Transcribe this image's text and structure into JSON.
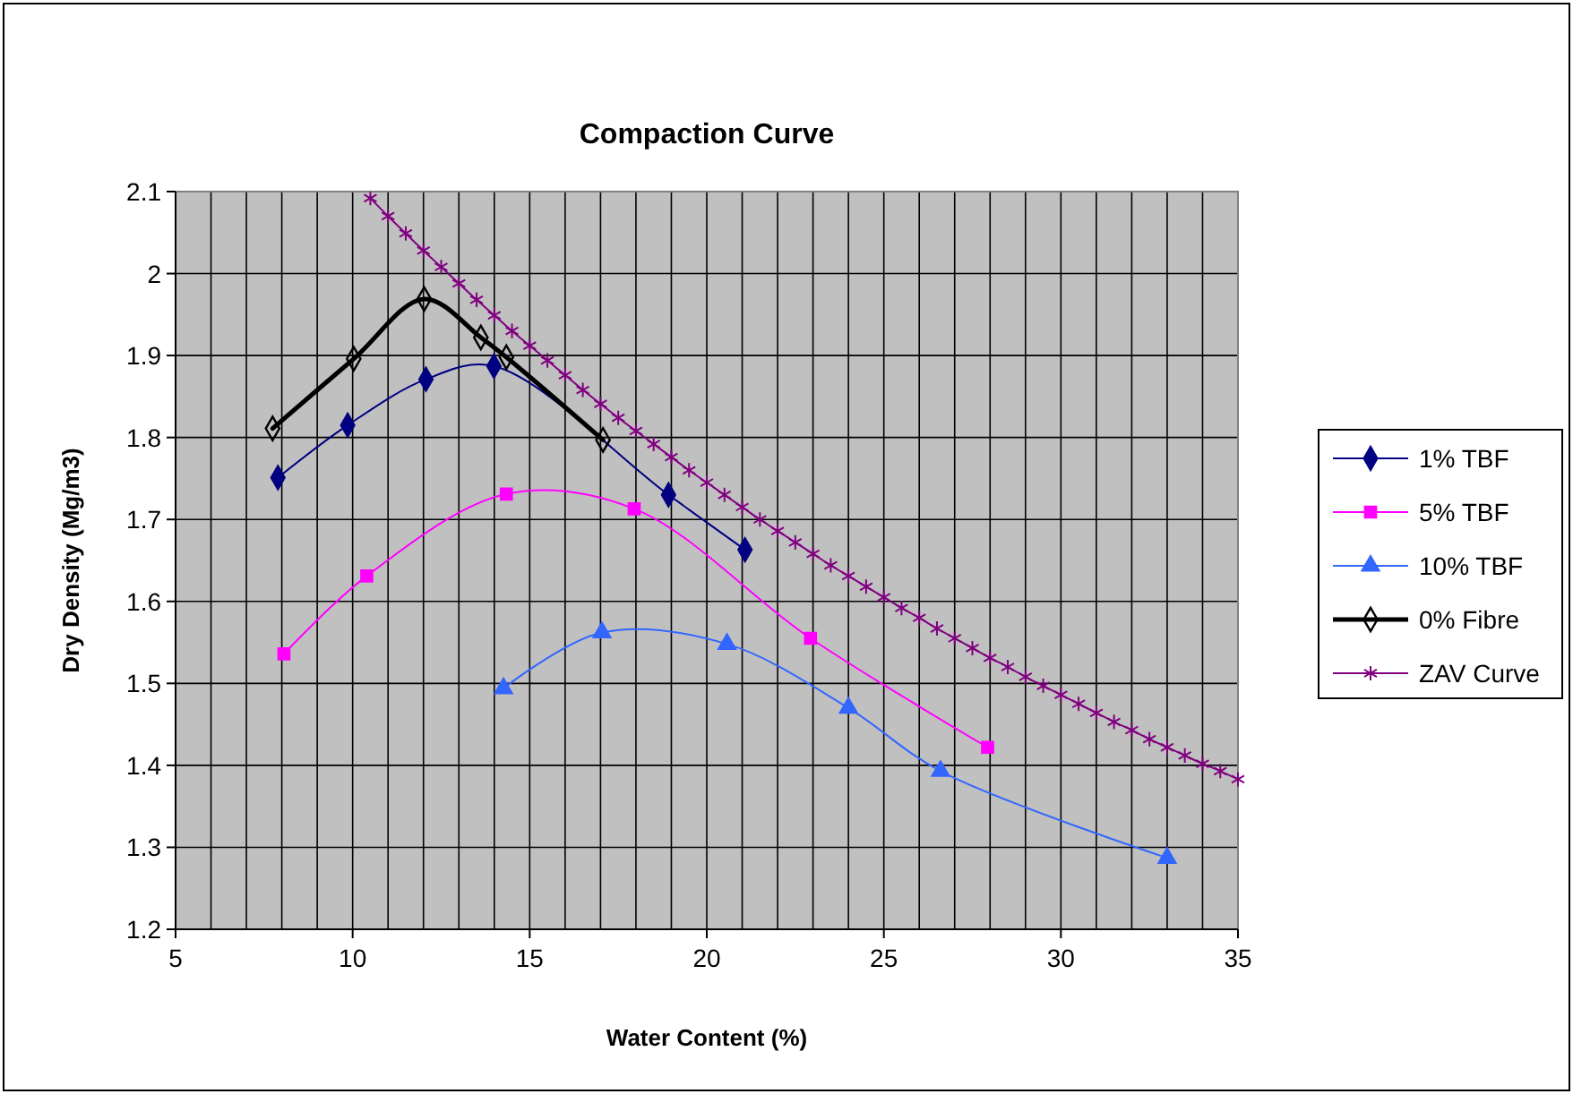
{
  "chart_data": {
    "type": "line",
    "title": "Compaction Curve",
    "xlabel": "Water Content (%)",
    "ylabel": "Dry Density (Mg/m3)",
    "xlim": [
      5,
      35
    ],
    "ylim": [
      1.2,
      2.1
    ],
    "xticks": [
      5,
      {
        "value": 6,
        "label": null
      },
      {
        "value": 7,
        "label": null
      },
      {
        "value": 8,
        "label": null
      },
      {
        "value": 9,
        "label": null
      },
      10,
      {
        "value": 11,
        "label": null
      },
      {
        "value": 12,
        "label": null
      },
      {
        "value": 13,
        "label": null
      },
      {
        "value": 14,
        "label": null
      },
      15,
      {
        "value": 16,
        "label": null
      },
      {
        "value": 17,
        "label": null
      },
      {
        "value": 18,
        "label": null
      },
      {
        "value": 19,
        "label": null
      },
      20,
      {
        "value": 21,
        "label": null
      },
      {
        "value": 22,
        "label": null
      },
      {
        "value": 23,
        "label": null
      },
      {
        "value": 24,
        "label": null
      },
      25,
      {
        "value": 26,
        "label": null
      },
      {
        "value": 27,
        "label": null
      },
      {
        "value": 28,
        "label": null
      },
      {
        "value": 29,
        "label": null
      },
      30,
      {
        "value": 31,
        "label": null
      },
      {
        "value": 32,
        "label": null
      },
      {
        "value": 33,
        "label": null
      },
      {
        "value": 34,
        "label": null
      },
      35
    ],
    "yticks": [
      1.2,
      1.3,
      1.4,
      1.5,
      1.6,
      1.7,
      1.8,
      1.9,
      2,
      2.1
    ],
    "grid": true,
    "legend": "right",
    "series": [
      {
        "name": "1% TBF",
        "color": "#000080",
        "marker": "diamond",
        "x": [
          7.89,
          9.86,
          12.07,
          13.99,
          18.92,
          21.08
        ],
        "values": [
          1.751,
          1.815,
          1.871,
          1.887,
          1.73,
          1.663
        ]
      },
      {
        "name": "5% TBF",
        "color": "#ff00ff",
        "marker": "square",
        "x": [
          8.06,
          10.4,
          14.34,
          17.95,
          22.93,
          27.93
        ],
        "values": [
          1.536,
          1.631,
          1.731,
          1.713,
          1.555,
          1.422
        ]
      },
      {
        "name": "10% TBF",
        "color": "#3366ff",
        "marker": "triangle",
        "x": [
          14.26,
          17.04,
          20.57,
          24.0,
          26.6,
          33.0
        ],
        "values": [
          1.494,
          1.562,
          1.548,
          1.47,
          1.393,
          1.287
        ]
      },
      {
        "name": "0% Fibre",
        "color": "#000000",
        "marker": "diamond",
        "x": [
          7.74,
          10.03,
          12.02,
          13.62,
          14.34,
          17.07
        ],
        "values": [
          1.811,
          1.896,
          1.969,
          1.922,
          1.898,
          1.797
        ]
      },
      {
        "name": "ZAV Curve",
        "color": "#800080",
        "marker": "cross",
        "x": [
          10.5,
          11,
          11.5,
          12,
          12.5,
          13,
          13.5,
          14,
          14.5,
          15,
          15.5,
          16,
          16.5,
          17,
          17.5,
          18,
          18.5,
          19,
          19.5,
          20,
          20.5,
          21,
          21.5,
          22,
          22.5,
          23,
          23.5,
          24,
          24.5,
          25,
          25.5,
          26,
          26.5,
          27,
          27.5,
          28,
          28.5,
          29,
          29.5,
          30,
          30.5,
          31,
          31.5,
          32,
          32.5,
          33,
          33.5,
          34,
          34.5,
          35
        ],
        "values": [
          2.092,
          2.07,
          2.049,
          2.028,
          2.008,
          1.988,
          1.968,
          1.949,
          1.93,
          1.912,
          1.894,
          1.876,
          1.858,
          1.841,
          1.824,
          1.808,
          1.792,
          1.776,
          1.76,
          1.745,
          1.73,
          1.715,
          1.7,
          1.686,
          1.672,
          1.658,
          1.644,
          1.631,
          1.618,
          1.605,
          1.592,
          1.58,
          1.567,
          1.555,
          1.543,
          1.531,
          1.52,
          1.508,
          1.497,
          1.486,
          1.475,
          1.464,
          1.453,
          1.443,
          1.432,
          1.422,
          1.412,
          1.402,
          1.393,
          1.383
        ]
      }
    ]
  }
}
